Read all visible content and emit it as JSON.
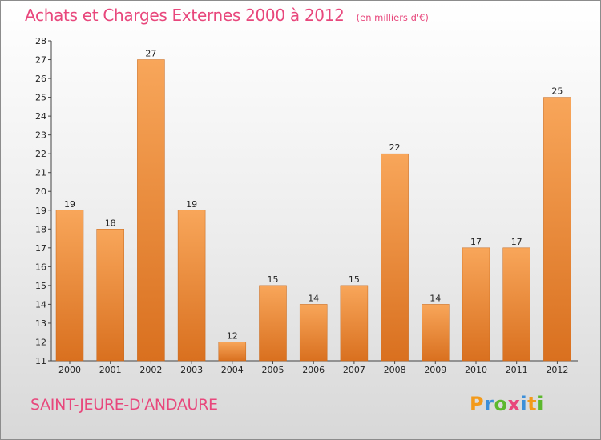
{
  "header": {
    "title": "Achats et Charges Externes 2000 à 2012",
    "subtitle": "(en milliers d'€)"
  },
  "footer": {
    "commune": "SAINT-JEURE-D'ANDAURE",
    "logo": {
      "letters": [
        "P",
        "r",
        "o",
        "x",
        "i",
        "t",
        "i"
      ],
      "colors": [
        "#f39a1a",
        "#3c8fd9",
        "#5cb82e",
        "#e8477c",
        "#3c8fd9",
        "#f39a1a",
        "#5cb82e"
      ]
    }
  },
  "colors": {
    "bar_light": "#f8a65a",
    "bar_dark": "#d9701f",
    "title": "#e8477c"
  },
  "chart_data": {
    "type": "bar",
    "categories": [
      "2000",
      "2001",
      "2002",
      "2003",
      "2004",
      "2005",
      "2006",
      "2007",
      "2008",
      "2009",
      "2010",
      "2011",
      "2012"
    ],
    "values": [
      19,
      18,
      27,
      19,
      12,
      15,
      14,
      15,
      22,
      14,
      17,
      17,
      25
    ],
    "ylim": [
      11,
      28
    ],
    "yticks": [
      11,
      12,
      13,
      14,
      15,
      16,
      17,
      18,
      19,
      20,
      21,
      22,
      23,
      24,
      25,
      26,
      27,
      28
    ],
    "grid": false,
    "data_labels": true
  }
}
